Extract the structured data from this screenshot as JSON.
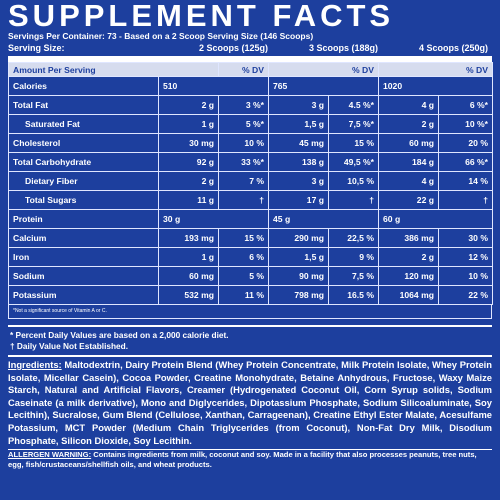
{
  "header": {
    "title": "SUPPLEMENT FACTS",
    "servings": "Servings Per Container: 73 - Based on a 2 Scoop Serving Size (146 Scoops)",
    "serving_size_label": "Serving Size:",
    "serving_sizes": [
      "2 Scoops (125g)",
      "3 Scoops (188g)",
      "4 Scoops (250g)"
    ]
  },
  "table": {
    "head": {
      "name": "Amount Per Serving",
      "dv": [
        "% DV",
        "% DV",
        "% DV"
      ]
    },
    "rows": [
      {
        "name": "Calories",
        "amounts": [
          "510",
          "765",
          "1020"
        ]
      },
      {
        "name": "Total Fat",
        "amounts": [
          "2 g",
          "3 g",
          "4 g"
        ],
        "dv": [
          "3 %*",
          "4.5 %*",
          "6 %*"
        ]
      },
      {
        "name": "Saturated Fat",
        "indent": true,
        "amounts": [
          "1 g",
          "1,5 g",
          "2 g"
        ],
        "dv": [
          "5 %*",
          "7,5 %*",
          "10 %*"
        ]
      },
      {
        "name": "Cholesterol",
        "amounts": [
          "30 mg",
          "45 mg",
          "60 mg"
        ],
        "dv": [
          "10 %",
          "15 %",
          "20 %"
        ]
      },
      {
        "name": "Total Carbohydrate",
        "amounts": [
          "92 g",
          "138 g",
          "184 g"
        ],
        "dv": [
          "33 %*",
          "49,5 %*",
          "66 %*"
        ]
      },
      {
        "name": "Dietary Fiber",
        "indent": true,
        "amounts": [
          "2 g",
          "3 g",
          "4 g"
        ],
        "dv": [
          "7 %",
          "10,5 %",
          "14 %"
        ]
      },
      {
        "name": "Total Sugars",
        "indent": true,
        "amounts": [
          "11 g",
          "17 g",
          "22 g"
        ],
        "dv": [
          "†",
          "†",
          "†"
        ]
      },
      {
        "name": "Protein",
        "amounts": [
          "30 g",
          "45 g",
          "60 g"
        ]
      },
      {
        "name": "Calcium",
        "amounts": [
          "193 mg",
          "290 mg",
          "386 mg"
        ],
        "dv": [
          "15 %",
          "22,5 %",
          "30 %"
        ]
      },
      {
        "name": "Iron",
        "amounts": [
          "1 g",
          "1,5 g",
          "2 g"
        ],
        "dv": [
          "6 %",
          "9 %",
          "12 %"
        ]
      },
      {
        "name": "Sodium",
        "amounts": [
          "60 mg",
          "90 mg",
          "120 mg"
        ],
        "dv": [
          "5 %",
          "7,5 %",
          "10 %"
        ]
      },
      {
        "name": "Potassium",
        "amounts": [
          "532 mg",
          "798 mg",
          "1064 mg"
        ],
        "dv": [
          "11 %",
          "16.5 %",
          "22 %"
        ]
      }
    ],
    "note": "*Not a significant source of Vitamin A or C."
  },
  "footnotes": [
    "* Percent Daily Values are based on a 2,000 calorie diet.",
    "† Daily Value Not Established."
  ],
  "ingredients": {
    "label": "Ingredients:",
    "text": "Maltodextrin, Dairy Protein Blend (Whey Protein Concentrate, Milk Protein Isolate, Whey Protein Isolate, Micellar Casein), Cocoa Powder, Creatine Monohydrate, Betaine Anhydrous, Fructose, Waxy Maize Starch, Natural and Artificial Flavors, Creamer (Hydrogenated Coconut Oil, Corn Syrup solids, Sodium Caseinate (a milk derivative), Mono and Diglycerides, Dipotassium Phosphate, Sodium Silicoaluminate, Soy Lecithin), Sucralose, Gum Blend (Cellulose, Xanthan, Carrageenan), Creatine Ethyl Ester Malate, Acesulfame Potassium, MCT Powder (Medium Chain Triglycerides (from Coconut), Non-Fat Dry Milk, Disodium Phosphate, Silicon Dioxide, Soy Lecithin."
  },
  "allergen": {
    "label": "ALLERGEN WARNING:",
    "text": "Contains ingredients from milk, coconut and soy. Made in a facility that also processes peanuts, tree nuts, egg, fish/crustaceans/shellfish oils, and wheat products."
  }
}
